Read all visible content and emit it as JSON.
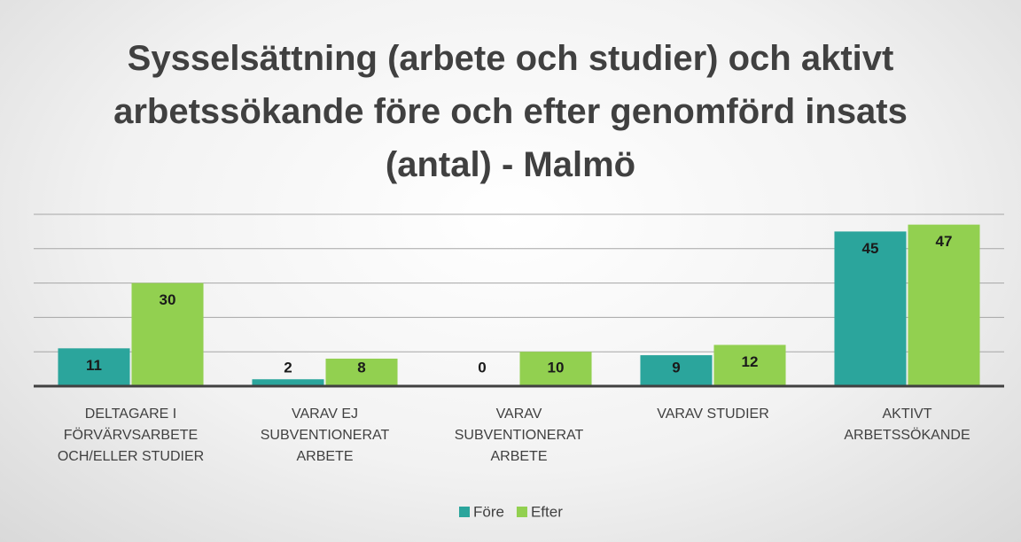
{
  "chart_data": {
    "type": "bar",
    "title": "Sysselsättning (arbete och studier) och aktivt arbetssökande före och efter genomförd insats (antal) - Malmö",
    "categories": [
      "DELTAGARE I\nFÖRVÄRVSARBETE\nOCH/ELLER STUDIER",
      "VARAV EJ\nSUBVENTIONERAT\nARBETE",
      "VARAV\nSUBVENTIONERAT\nARBETE",
      "VARAV STUDIER",
      "AKTIVT\nARBETSSÖKANDE"
    ],
    "series": [
      {
        "name": "Före",
        "color": "#2ba59c",
        "values": [
          11,
          2,
          0,
          9,
          45
        ]
      },
      {
        "name": "Efter",
        "color": "#92d050",
        "values": [
          30,
          8,
          10,
          12,
          47
        ]
      }
    ],
    "ylim": [
      0,
      50
    ],
    "yticks": [
      0,
      10,
      20,
      30,
      40,
      50
    ],
    "grid": true,
    "legend": "bottom"
  }
}
